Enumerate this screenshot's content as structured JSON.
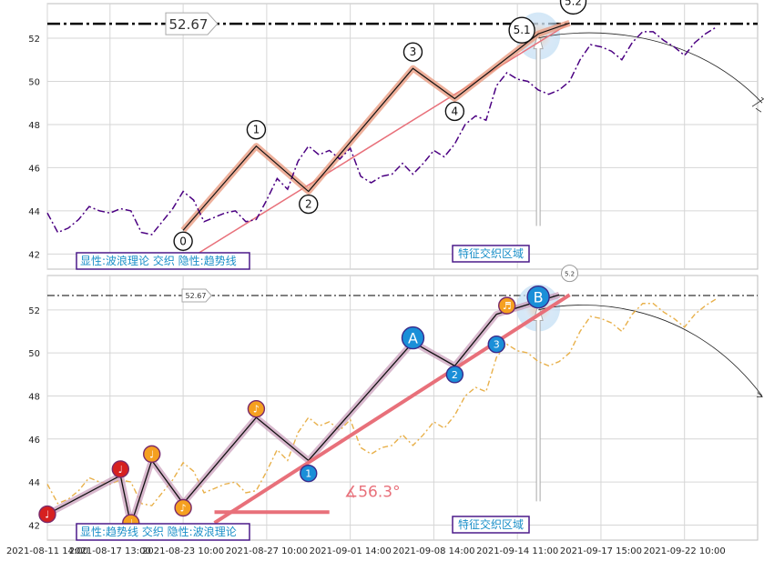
{
  "chart_data": [
    {
      "type": "line",
      "panel": "top",
      "y_ticks": [
        42,
        44,
        46,
        48,
        50,
        52
      ],
      "ylim": [
        41.3,
        53.6
      ],
      "grid": true,
      "reference_line": {
        "value": 52.67,
        "label": "52.67",
        "style": "dash-dot"
      },
      "series": [
        {
          "role": "price",
          "x": [
            0.0,
            0.5,
            1.0,
            1.5,
            2.0,
            2.5,
            3.0,
            3.5,
            4.0,
            4.5,
            5.0,
            5.5,
            6.0,
            6.5,
            7.0,
            7.5,
            8.0,
            8.5,
            9.0,
            9.5,
            10.0,
            10.5,
            11.0,
            11.5,
            12.0,
            12.5,
            13.0,
            13.5,
            14.0,
            14.5,
            15.0,
            15.5,
            16.0,
            16.5,
            17.0,
            17.5,
            18.0,
            18.5,
            19.0,
            19.5,
            20.0,
            20.5,
            21.0,
            21.5,
            22.0,
            22.5,
            23.0,
            23.5,
            24.0,
            24.5,
            25.0,
            25.5,
            26.0,
            26.5,
            27.0,
            27.5,
            28.0,
            28.5,
            29.0,
            29.5,
            30.0,
            30.5,
            31.0,
            31.5,
            32.0
          ],
          "y": [
            43.9,
            43.0,
            43.2,
            43.6,
            44.2,
            44.0,
            43.9,
            44.1,
            44.0,
            43.0,
            42.9,
            43.5,
            44.1,
            44.9,
            44.5,
            43.5,
            43.7,
            43.9,
            44.0,
            43.5,
            43.6,
            44.5,
            45.5,
            45.0,
            46.3,
            47.0,
            46.6,
            46.8,
            46.4,
            46.9,
            45.6,
            45.3,
            45.6,
            45.7,
            46.2,
            45.7,
            46.2,
            46.8,
            46.5,
            47.1,
            48.0,
            48.4,
            48.2,
            49.8,
            50.4,
            50.1,
            50.0,
            49.6,
            49.4,
            49.6,
            50.0,
            51.0,
            51.7,
            51.6,
            51.4,
            51.0,
            51.8,
            52.3,
            52.3,
            51.9,
            51.6,
            51.2,
            51.8,
            52.2,
            52.5
          ]
        },
        {
          "role": "wave",
          "labels": [
            "0",
            "1",
            "2",
            "3",
            "4",
            "5.1",
            "5.2"
          ],
          "x": [
            6.5,
            10.0,
            12.5,
            17.5,
            19.5,
            23.5,
            25.0
          ],
          "y": [
            43.1,
            47.0,
            44.9,
            50.6,
            49.2,
            52.2,
            52.7
          ]
        },
        {
          "role": "trendline",
          "x": [
            7.0,
            25.0
          ],
          "y": [
            41.9,
            52.7
          ]
        }
      ],
      "projection": {
        "x": [
          23.5,
          34.0
        ],
        "y": [
          52.0,
          49.0
        ]
      },
      "box_label": "显性:波浪理论 交织 隐性:趋势线",
      "zone_label": "特征交织区域"
    },
    {
      "type": "line",
      "panel": "bottom",
      "y_ticks": [
        42,
        44,
        46,
        48,
        50,
        52
      ],
      "ylim": [
        41.3,
        53.6
      ],
      "grid": true,
      "reference_line": {
        "value": 52.67,
        "label": "52.67",
        "style": "dash-dot"
      },
      "series": [
        {
          "role": "price",
          "x": [
            0.0,
            0.5,
            1.0,
            1.5,
            2.0,
            2.5,
            3.0,
            3.5,
            4.0,
            4.5,
            5.0,
            5.5,
            6.0,
            6.5,
            7.0,
            7.5,
            8.0,
            8.5,
            9.0,
            9.5,
            10.0,
            10.5,
            11.0,
            11.5,
            12.0,
            12.5,
            13.0,
            13.5,
            14.0,
            14.5,
            15.0,
            15.5,
            16.0,
            16.5,
            17.0,
            17.5,
            18.0,
            18.5,
            19.0,
            19.5,
            20.0,
            20.5,
            21.0,
            21.5,
            22.0,
            22.5,
            23.0,
            23.5,
            24.0,
            24.5,
            25.0,
            25.5,
            26.0,
            26.5,
            27.0,
            27.5,
            28.0,
            28.5,
            29.0,
            29.5,
            30.0,
            30.5,
            31.0,
            31.5,
            32.0
          ],
          "y": [
            43.9,
            43.0,
            43.2,
            43.6,
            44.2,
            44.0,
            43.9,
            44.1,
            44.0,
            43.0,
            42.9,
            43.5,
            44.1,
            44.9,
            44.5,
            43.5,
            43.7,
            43.9,
            44.0,
            43.5,
            43.6,
            44.5,
            45.5,
            45.0,
            46.3,
            47.0,
            46.6,
            46.8,
            46.4,
            46.9,
            45.6,
            45.3,
            45.6,
            45.7,
            46.2,
            45.7,
            46.2,
            46.8,
            46.5,
            47.1,
            48.0,
            48.4,
            48.2,
            49.8,
            50.4,
            50.1,
            50.0,
            49.6,
            49.4,
            49.6,
            50.0,
            51.0,
            51.7,
            51.6,
            51.4,
            51.0,
            51.8,
            52.3,
            52.3,
            51.9,
            51.6,
            51.2,
            51.8,
            52.2,
            52.5
          ]
        },
        {
          "role": "zigzag",
          "x": [
            0.0,
            3.5,
            4.0,
            5.0,
            6.5,
            10.0,
            12.5,
            17.5,
            19.5,
            21.5,
            24.5
          ],
          "y": [
            42.5,
            44.3,
            42.0,
            45.0,
            43.0,
            47.0,
            45.0,
            50.5,
            49.4,
            51.8,
            52.7
          ]
        },
        {
          "role": "trendline",
          "x": [
            8.0,
            25.0
          ],
          "y": [
            42.1,
            52.7
          ]
        },
        {
          "role": "angle_line",
          "x": [
            8.0,
            13.5
          ],
          "y": [
            42.6,
            42.6
          ]
        }
      ],
      "markers": [
        {
          "label": "♩",
          "kind": "red",
          "x": 0.0,
          "y": 42.5
        },
        {
          "label": "♩",
          "kind": "red",
          "x": 3.5,
          "y": 44.6
        },
        {
          "label": "♩",
          "kind": "orange",
          "x": 4.0,
          "y": 42.1
        },
        {
          "label": "♩",
          "kind": "orange",
          "x": 5.0,
          "y": 45.3
        },
        {
          "label": "♪",
          "kind": "orange",
          "x": 6.5,
          "y": 42.8
        },
        {
          "label": "♪",
          "kind": "orange",
          "x": 10.0,
          "y": 47.4
        },
        {
          "label": "1",
          "kind": "blue",
          "x": 12.5,
          "y": 44.4
        },
        {
          "label": "A",
          "kind": "blue",
          "x": 17.5,
          "y": 50.7
        },
        {
          "label": "2",
          "kind": "blue",
          "x": 19.5,
          "y": 49.0
        },
        {
          "label": "3",
          "kind": "blue",
          "x": 21.5,
          "y": 50.4
        },
        {
          "label": "♬",
          "kind": "orange",
          "x": 22.0,
          "y": 52.2
        },
        {
          "label": "B",
          "kind": "blue",
          "x": 23.5,
          "y": 52.6
        }
      ],
      "angle_label": "∡56.3°",
      "projection_label": "5.2",
      "projection": {
        "x": [
          23.5,
          34.0
        ],
        "y": [
          52.0,
          48.0
        ]
      },
      "box_label": "显性:趋势线 交织 隐性:波浪理论",
      "zone_label": "特征交织区域"
    }
  ],
  "x_ticks": [
    {
      "label": "2021-08-11 14:00",
      "x": 0.0
    },
    {
      "label": "2021-08-17 13:00",
      "x": 3.0
    },
    {
      "label": "2021-08-23 10:00",
      "x": 6.5
    },
    {
      "label": "2021-08-27 10:00",
      "x": 10.5
    },
    {
      "label": "2021-09-01 14:00",
      "x": 14.5
    },
    {
      "label": "2021-09-08 14:00",
      "x": 18.5
    },
    {
      "label": "2021-09-14 11:00",
      "x": 22.5
    },
    {
      "label": "2021-09-17 15:00",
      "x": 26.5
    },
    {
      "label": "2021-09-22 10:00",
      "x": 30.5
    }
  ],
  "colors": {
    "price_top": "#4b0082",
    "price_bottom": "#e8b04a",
    "wave_fill": "#e8967a",
    "trend": "#e8707a",
    "marker_red": "#d62020",
    "marker_orange": "#f5a020",
    "marker_blue": "#1a8fd8",
    "label_text": "#1a8fc8",
    "label_border": "#4b1a8a"
  }
}
